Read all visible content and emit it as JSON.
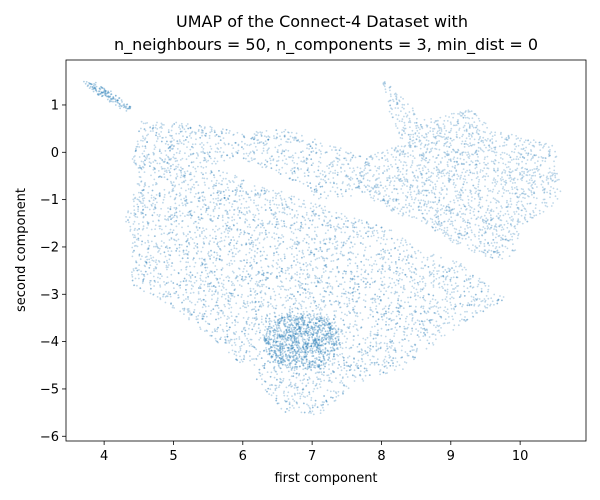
{
  "chart_data": {
    "type": "scatter",
    "title_lines": [
      "UMAP of the Connect-4 Dataset with",
      "n_neighbours = 50, n_components = 3, min_dist = 0"
    ],
    "xlabel": "first component",
    "ylabel": "second component",
    "xlim": [
      3.45,
      10.95
    ],
    "ylim": [
      -6.1,
      1.95
    ],
    "xticks": [
      4,
      5,
      6,
      7,
      8,
      9,
      10
    ],
    "yticks": [
      1,
      0,
      -1,
      -2,
      -3,
      -4,
      -5,
      -6
    ],
    "xtick_labels": [
      "4",
      "5",
      "6",
      "7",
      "8",
      "9",
      "10"
    ],
    "ytick_labels": [
      "1",
      "0",
      "−1",
      "−2",
      "−3",
      "−4",
      "−5",
      "−6"
    ],
    "grid": false,
    "marker_color": "#1f77b4",
    "marker_opacity": 0.12,
    "point_cloud": {
      "description_clusters": [
        {
          "name": "main-body",
          "x_range": [
            4.3,
            9.6
          ],
          "y_range": [
            -5.6,
            0.8
          ]
        },
        {
          "name": "upper-left-island",
          "x": [
            3.75,
            4.35
          ],
          "y": [
            0.85,
            1.5
          ]
        },
        {
          "name": "right-upper-lobe",
          "x_range": [
            8.0,
            10.6
          ],
          "y_range": [
            -3.5,
            1.55
          ]
        }
      ],
      "polygon_main": [
        [
          4.55,
          0.7
        ],
        [
          5.4,
          0.6
        ],
        [
          6.0,
          0.4
        ],
        [
          6.6,
          0.5
        ],
        [
          7.2,
          0.2
        ],
        [
          7.8,
          -0.1
        ],
        [
          7.7,
          -0.9
        ],
        [
          7.1,
          -1.0
        ],
        [
          6.6,
          -0.5
        ],
        [
          5.9,
          -0.1
        ],
        [
          5.5,
          -0.3
        ],
        [
          8.1,
          -1.6
        ],
        [
          8.6,
          -2.1
        ],
        [
          9.1,
          -2.3
        ],
        [
          9.8,
          -3.1
        ],
        [
          9.3,
          -3.5
        ],
        [
          8.9,
          -3.9
        ],
        [
          8.3,
          -4.6
        ],
        [
          7.6,
          -4.9
        ],
        [
          7.1,
          -5.6
        ],
        [
          6.6,
          -5.5
        ],
        [
          6.2,
          -4.8
        ],
        [
          5.7,
          -4.1
        ],
        [
          5.0,
          -3.3
        ],
        [
          4.4,
          -2.8
        ],
        [
          4.4,
          -1.8
        ],
        [
          4.3,
          -1.4
        ],
        [
          4.5,
          -0.5
        ],
        [
          4.4,
          -0.1
        ]
      ],
      "polygon_right": [
        [
          8.0,
          1.55
        ],
        [
          8.3,
          1.2
        ],
        [
          8.6,
          0.7
        ],
        [
          9.3,
          0.9
        ],
        [
          9.6,
          0.5
        ],
        [
          10.1,
          0.3
        ],
        [
          10.5,
          0.2
        ],
        [
          10.6,
          -1.0
        ],
        [
          10.3,
          -1.3
        ],
        [
          10.0,
          -1.6
        ],
        [
          9.9,
          -2.3
        ],
        [
          9.4,
          -2.2
        ],
        [
          8.9,
          -1.8
        ],
        [
          8.6,
          -1.5
        ],
        [
          8.0,
          -1.2
        ],
        [
          7.6,
          -0.7
        ],
        [
          7.8,
          -0.1
        ],
        [
          8.3,
          0.2
        ],
        [
          8.1,
          0.9
        ]
      ]
    }
  }
}
